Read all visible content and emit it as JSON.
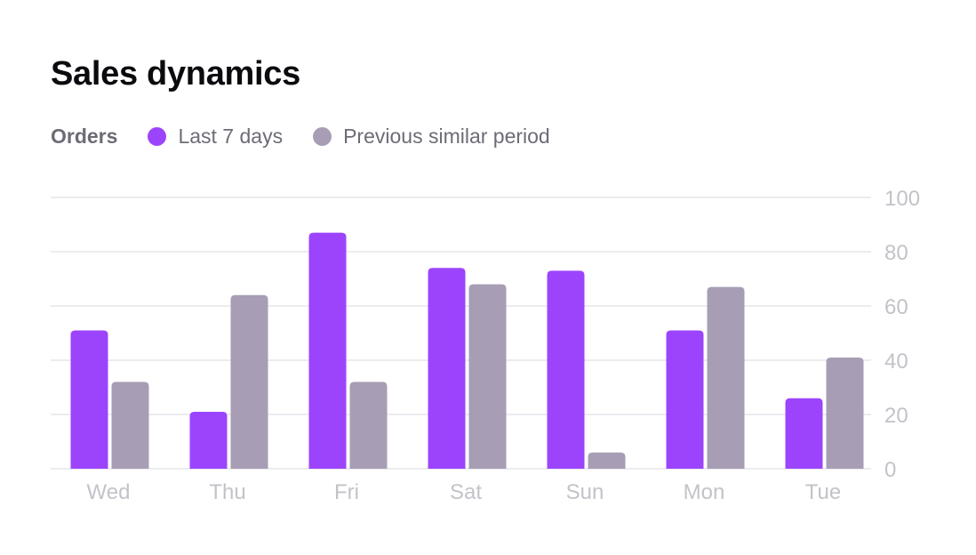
{
  "title": "Sales dynamics",
  "legend": {
    "label": "Orders",
    "items": [
      "Last 7 days",
      "Previous similar period"
    ]
  },
  "colors": {
    "last": "#9C44FC",
    "previous": "#A79DB4",
    "grid": "#ECEBEF",
    "tick": "#C4C2C9"
  },
  "chart_data": {
    "type": "bar",
    "title": "Sales dynamics",
    "ylabel": "Orders",
    "categories": [
      "Wed",
      "Thu",
      "Fri",
      "Sat",
      "Sun",
      "Mon",
      "Tue"
    ],
    "series": [
      {
        "name": "Last 7 days",
        "values": [
          51,
          21,
          87,
          74,
          73,
          51,
          26
        ]
      },
      {
        "name": "Previous similar period",
        "values": [
          32,
          64,
          32,
          68,
          6,
          67,
          41
        ]
      }
    ],
    "ylim": [
      0,
      100
    ],
    "yticks": [
      0,
      20,
      40,
      60,
      80,
      100
    ],
    "grid": true,
    "legend": "top-left"
  }
}
